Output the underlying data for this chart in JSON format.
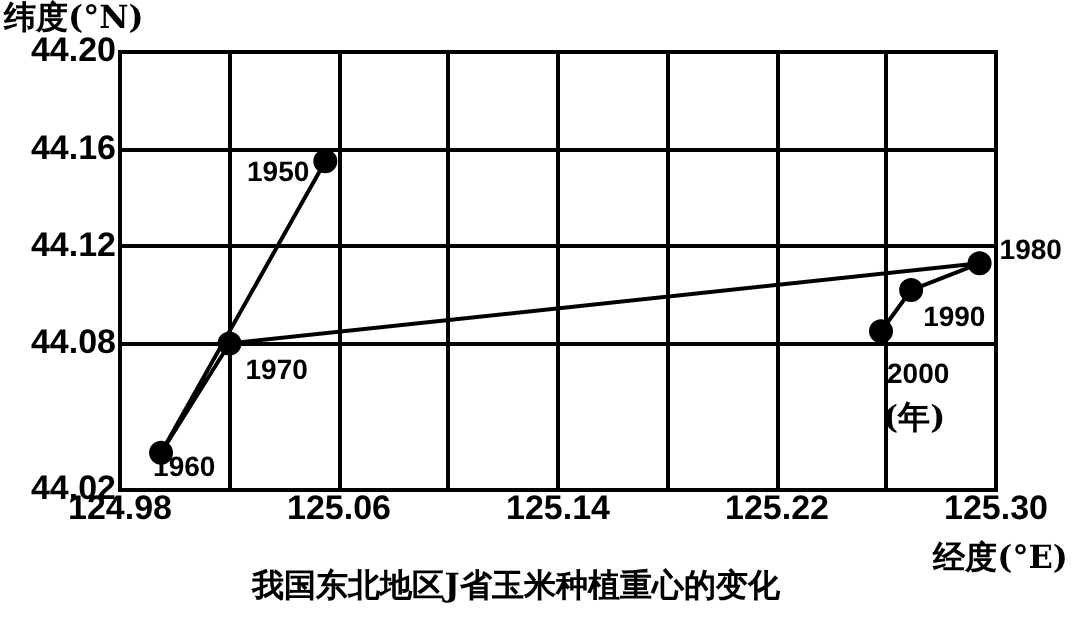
{
  "chart_data": {
    "type": "line",
    "title": "我国东北地区J省玉米种植重心的变化",
    "xlabel": "经度(°E)",
    "ylabel": "纬度(°N)",
    "x": [
      125.055,
      124.995,
      125.02,
      125.294,
      125.269,
      125.258
    ],
    "series": [
      {
        "color": "#000000",
        "values": [
          44.155,
          44.035,
          44.08,
          44.113,
          44.102,
          44.085
        ]
      }
    ],
    "xlim": [
      124.98,
      125.3
    ],
    "xticks": [
      124.98,
      {
        "value": 125.02,
        "label": null
      },
      125.06,
      {
        "value": 125.1,
        "label": null
      },
      125.14,
      {
        "value": 125.18,
        "label": null
      },
      125.22,
      {
        "value": 125.26,
        "label": null
      },
      {
        "value": 125.3,
        "label": "125.30"
      }
    ],
    "ylim": [
      44.02,
      44.2
    ],
    "yticks": [
      44.02,
      44.08,
      44.12,
      44.16,
      {
        "value": 44.2,
        "label": "44.20"
      }
    ],
    "grid": true,
    "marker": "circle",
    "line_style": "solid",
    "legend": false,
    "annotations": [
      {
        "text": "1950",
        "x": 125.055,
        "y": 44.155
      },
      {
        "text": "1960",
        "x": 124.995,
        "y": 44.035
      },
      {
        "text": "1970",
        "x": 125.02,
        "y": 44.08
      },
      {
        "text": "1980",
        "x": 125.294,
        "y": 44.113
      },
      {
        "text": "1990",
        "x": 125.269,
        "y": 44.102
      },
      {
        "text": "2000",
        "x": 125.258,
        "y": 44.085
      },
      "(年)"
    ]
  }
}
